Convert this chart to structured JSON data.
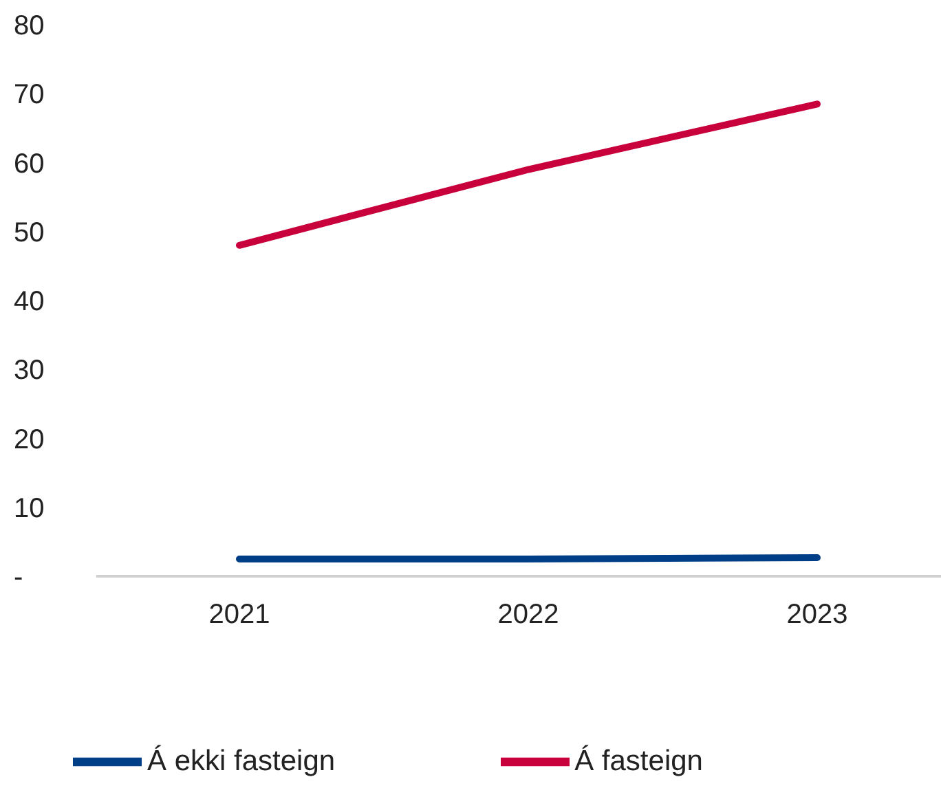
{
  "chart_data": {
    "type": "line",
    "categories": [
      "2021",
      "2022",
      "2023"
    ],
    "series": [
      {
        "name": "Á fasteign",
        "color": "#c8003c",
        "values": [
          48,
          59,
          68.5
        ]
      },
      {
        "name": "Á ekki fasteign",
        "color": "#003f87",
        "values": [
          2.5,
          2.5,
          2.7
        ]
      }
    ],
    "ylim": [
      0,
      80
    ],
    "yticks": [
      {
        "value": 0,
        "label": "-"
      },
      10,
      20,
      30,
      40,
      50,
      60,
      70,
      80
    ],
    "grid": false,
    "legend": "bottom",
    "marker": "none",
    "line_style": "solid"
  }
}
